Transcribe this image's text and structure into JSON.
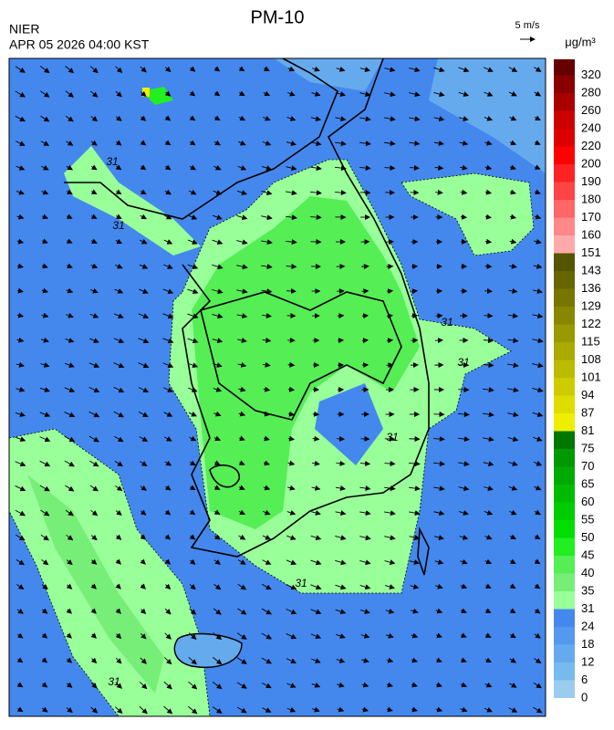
{
  "header": {
    "title": "PM-10",
    "agency": "NIER",
    "datetime": "APR 05 2026 04:00 KST",
    "wind_scale": "5 m/s",
    "unit": "μg/m³"
  },
  "colorbar": {
    "levels": [
      0,
      6,
      12,
      18,
      24,
      31,
      35,
      40,
      45,
      50,
      55,
      60,
      65,
      70,
      75,
      81,
      87,
      94,
      101,
      108,
      115,
      122,
      129,
      136,
      143,
      151,
      160,
      170,
      180,
      190,
      200,
      220,
      240,
      260,
      280,
      320
    ],
    "colors": [
      "#99ccee",
      "#77bbee",
      "#66aaee",
      "#5599ee",
      "#4488ee",
      "#99ff99",
      "#77ee77",
      "#55ee55",
      "#22ee22",
      "#00dd00",
      "#00cc00",
      "#00bb00",
      "#00aa00",
      "#009900",
      "#007700",
      "#eeee00",
      "#dddd00",
      "#cccc00",
      "#bbbb00",
      "#aaaa00",
      "#999900",
      "#888800",
      "#777700",
      "#666600",
      "#555500",
      "#ffaaaa",
      "#ff8888",
      "#ff6666",
      "#ff4444",
      "#ff2222",
      "#ff0000",
      "#dd0000",
      "#cc0000",
      "#aa0000",
      "#880000",
      "#660000"
    ]
  },
  "contour_labels": [
    "31",
    "31",
    "31",
    "31",
    "31",
    "31",
    "31"
  ]
}
